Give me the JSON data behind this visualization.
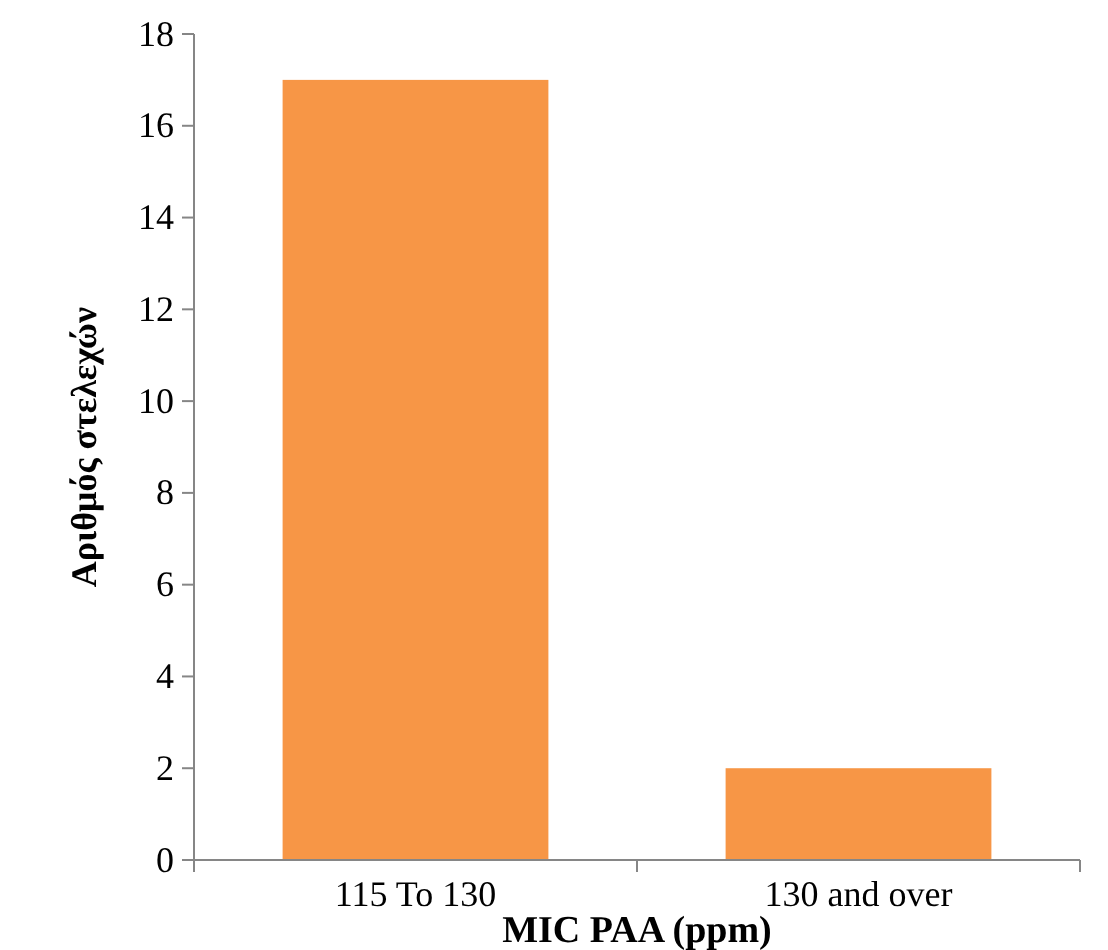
{
  "chart_data": {
    "type": "bar",
    "xlabel": "MIC PAA (ppm)",
    "ylabel": "Αριθμός στελεχών",
    "categories": [
      "115 To 130",
      "130 and over"
    ],
    "series": [
      {
        "color": "#f79646",
        "values": [
          17,
          2
        ]
      }
    ],
    "ylim": [
      0,
      18
    ],
    "yticks": [
      0,
      2,
      4,
      6,
      8,
      10,
      12,
      14,
      16,
      18
    ],
    "grid": false
  }
}
